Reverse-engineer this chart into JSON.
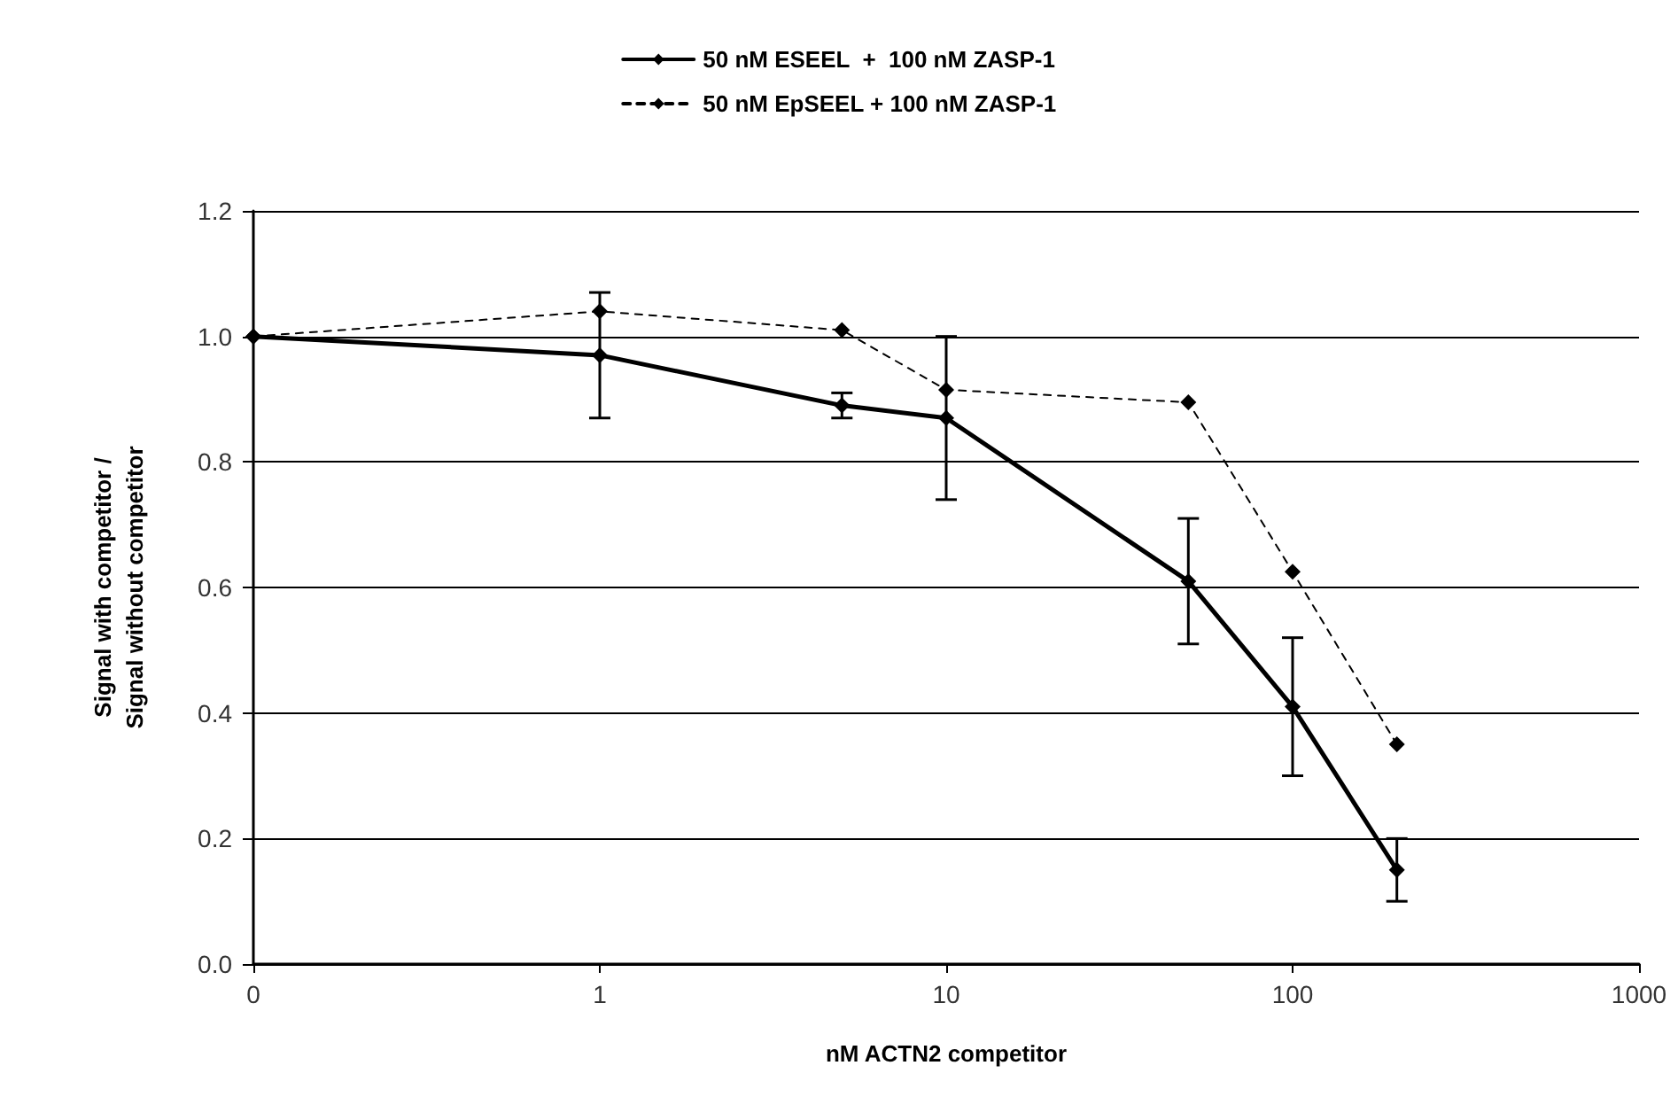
{
  "chart_data": {
    "type": "line",
    "xlabel": "nM ACTN2 competitor",
    "ylabel": "Signal with competitor /\nSignal without competitor",
    "x": [
      0.1,
      1,
      5,
      10,
      50,
      100,
      200
    ],
    "series": [
      {
        "name": "50 nM ESEEL  +  100 nM ZASP-1",
        "color": "#000000",
        "line_style": "solid",
        "values": [
          1.0,
          0.97,
          0.89,
          0.87,
          0.61,
          0.41,
          0.15
        ],
        "errors": [
          null,
          0.1,
          0.02,
          0.13,
          0.1,
          0.11,
          0.05
        ]
      },
      {
        "name": "50 nM EpSEEL + 100 nM ZASP-1",
        "color": "#000000",
        "line_style": "dashed",
        "values": [
          1.0,
          1.04,
          1.01,
          0.915,
          0.895,
          0.625,
          0.35
        ]
      }
    ],
    "log": "x",
    "xlim": [
      0.1,
      1000
    ],
    "xticks": [
      {
        "value": 0.1,
        "label": "0"
      },
      1,
      10,
      100,
      1000
    ],
    "ylim": [
      0,
      1.2
    ],
    "yticks": [
      {
        "value": 0,
        "label": "0.0"
      },
      0.2,
      0.4,
      0.6,
      0.8,
      {
        "value": 1,
        "label": "1.0"
      },
      1.2
    ],
    "grid": "y",
    "legend": "top",
    "marker": "diamond"
  }
}
